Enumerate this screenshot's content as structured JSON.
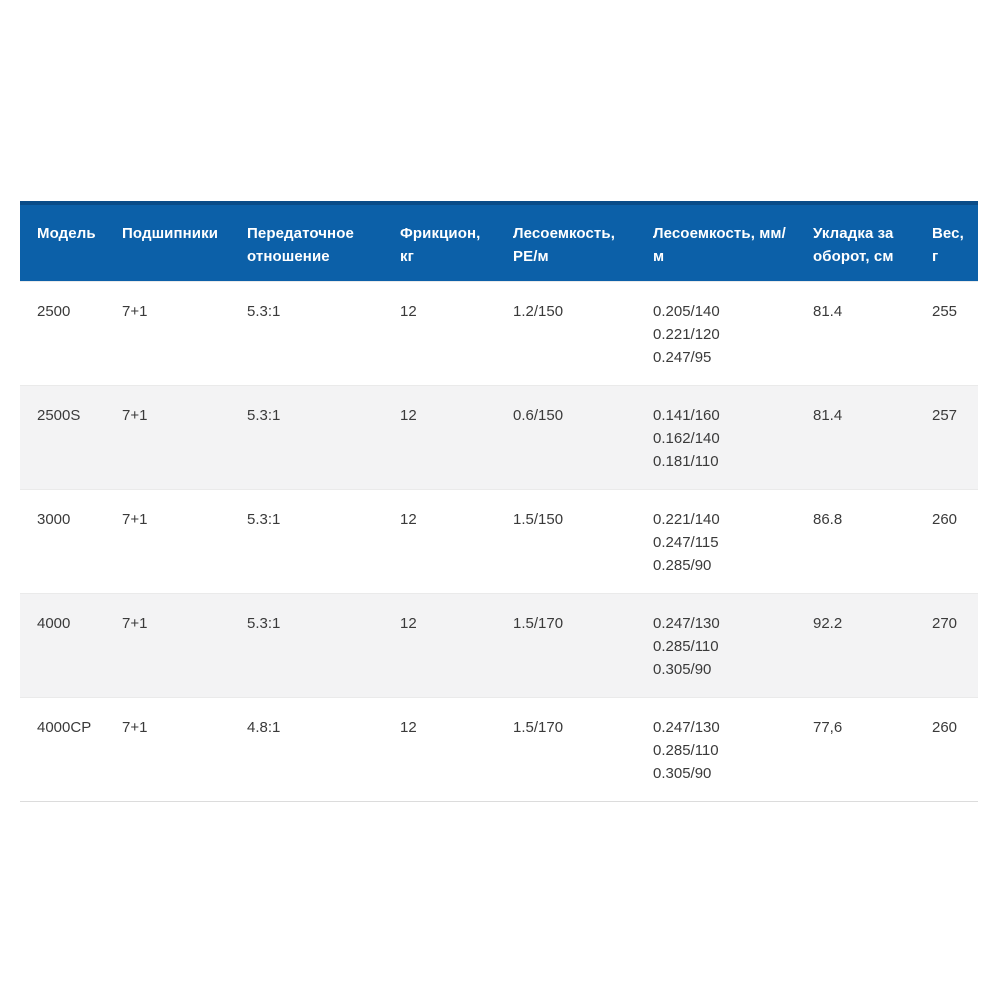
{
  "colors": {
    "header_bg": "#0c60a8",
    "header_top_border": "#0a4c88",
    "header_text": "#ffffff",
    "row_alt_bg": "#f3f3f4",
    "row_border": "#eaeaea",
    "table_bottom_border": "#dcdcdc",
    "cell_text": "#3a3a3a"
  },
  "table": {
    "columns": [
      "Модель",
      "Подшипники",
      "Передаточное отношение",
      "Фрикцион, кг",
      "Лесоемкость, PE/м",
      "Лесоемкость, мм/м",
      "Укладка за оборот, см",
      "Вес, г"
    ],
    "rows": [
      {
        "model": "2500",
        "bearings": "7+1",
        "gear_ratio": "5.3:1",
        "drag_kg": "12",
        "capacity_pe": "1.2/150",
        "capacity_mm": [
          "0.205/140",
          "0.221/120",
          "0.247/95"
        ],
        "retrieve_cm": "81.4",
        "weight_g": "255"
      },
      {
        "model": "2500S",
        "bearings": "7+1",
        "gear_ratio": "5.3:1",
        "drag_kg": "12",
        "capacity_pe": "0.6/150",
        "capacity_mm": [
          "0.141/160",
          "0.162/140",
          "0.181/110"
        ],
        "retrieve_cm": "81.4",
        "weight_g": "257"
      },
      {
        "model": "3000",
        "bearings": "7+1",
        "gear_ratio": "5.3:1",
        "drag_kg": "12",
        "capacity_pe": "1.5/150",
        "capacity_mm": [
          "0.221/140",
          "0.247/115",
          "0.285/90"
        ],
        "retrieve_cm": "86.8",
        "weight_g": "260"
      },
      {
        "model": "4000",
        "bearings": "7+1",
        "gear_ratio": "5.3:1",
        "drag_kg": "12",
        "capacity_pe": "1.5/170",
        "capacity_mm": [
          "0.247/130",
          "0.285/110",
          "0.305/90"
        ],
        "retrieve_cm": "92.2",
        "weight_g": "270"
      },
      {
        "model": "4000CP",
        "bearings": "7+1",
        "gear_ratio": "4.8:1",
        "drag_kg": "12",
        "capacity_pe": "1.5/170",
        "capacity_mm": [
          "0.247/130",
          "0.285/110",
          "0.305/90"
        ],
        "retrieve_cm": "77,6",
        "weight_g": "260"
      }
    ]
  },
  "chart_data": {
    "type": "table",
    "title": "",
    "columns": [
      "Модель",
      "Подшипники",
      "Передаточное отношение",
      "Фрикцион, кг",
      "Лесоемкость, PE/м",
      "Лесоемкость, мм/м",
      "Укладка за оборот, см",
      "Вес, г"
    ],
    "rows": [
      [
        "2500",
        "7+1",
        "5.3:1",
        "12",
        "1.2/150",
        "0.205/140; 0.221/120; 0.247/95",
        "81.4",
        "255"
      ],
      [
        "2500S",
        "7+1",
        "5.3:1",
        "12",
        "0.6/150",
        "0.141/160; 0.162/140; 0.181/110",
        "81.4",
        "257"
      ],
      [
        "3000",
        "7+1",
        "5.3:1",
        "12",
        "1.5/150",
        "0.221/140; 0.247/115; 0.285/90",
        "86.8",
        "260"
      ],
      [
        "4000",
        "7+1",
        "5.3:1",
        "12",
        "1.5/170",
        "0.247/130; 0.285/110; 0.305/90",
        "92.2",
        "270"
      ],
      [
        "4000CP",
        "7+1",
        "4.8:1",
        "12",
        "1.5/170",
        "0.247/130; 0.285/110; 0.305/90",
        "77,6",
        "260"
      ]
    ],
    "legend_position": "none",
    "grid": "row-stripes"
  }
}
